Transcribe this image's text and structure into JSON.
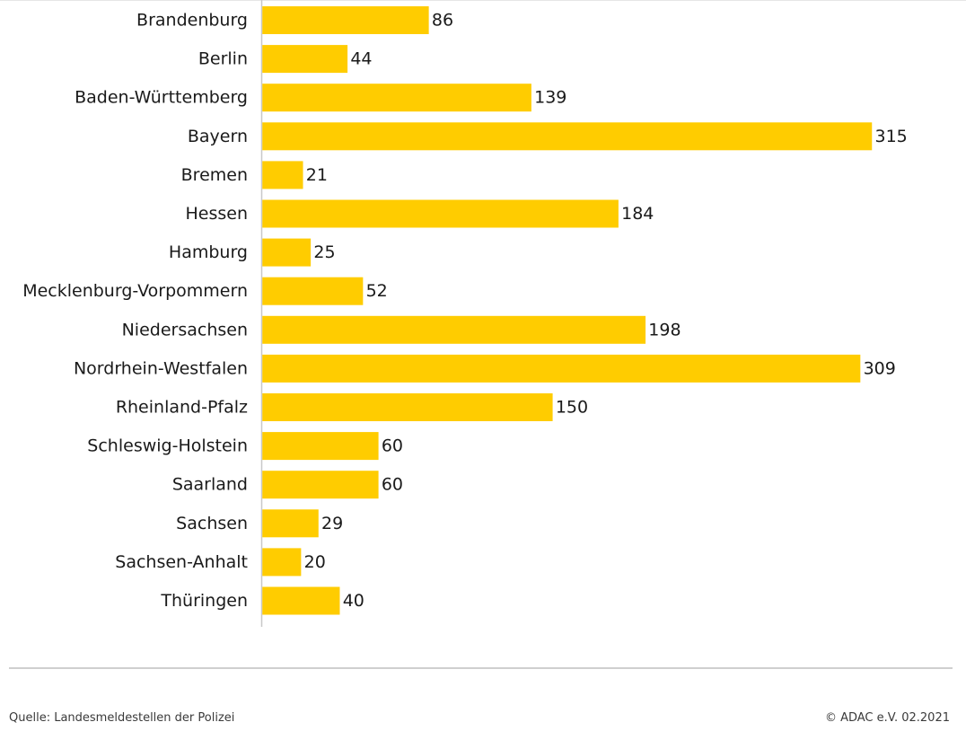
{
  "chart_data": {
    "type": "bar",
    "orientation": "horizontal",
    "categories": [
      "Brandenburg",
      "Berlin",
      "Baden-Württemberg",
      "Bayern",
      "Bremen",
      "Hessen",
      "Hamburg",
      "Mecklenburg-Vorpommern",
      "Niedersachsen",
      "Nordrhein-Westfalen",
      "Rheinland-Pfalz",
      "Schleswig-Holstein",
      "Saarland",
      "Sachsen",
      "Sachsen-Anhalt",
      "Thüringen"
    ],
    "values": [
      86,
      44,
      139,
      315,
      21,
      184,
      25,
      52,
      198,
      309,
      150,
      60,
      60,
      29,
      20,
      40
    ],
    "title": "",
    "xlabel": "",
    "ylabel": "",
    "xlim": [
      0,
      315
    ],
    "grid": false,
    "legend": "none",
    "colors": {
      "bar": "#FFCC00",
      "axis": "#c8c8c8",
      "text": "#1a1a1a"
    }
  },
  "footer": {
    "source": "Quelle: Landesmeldestellen der Polizei",
    "copyright": "© ADAC e.V. 02.2021"
  }
}
